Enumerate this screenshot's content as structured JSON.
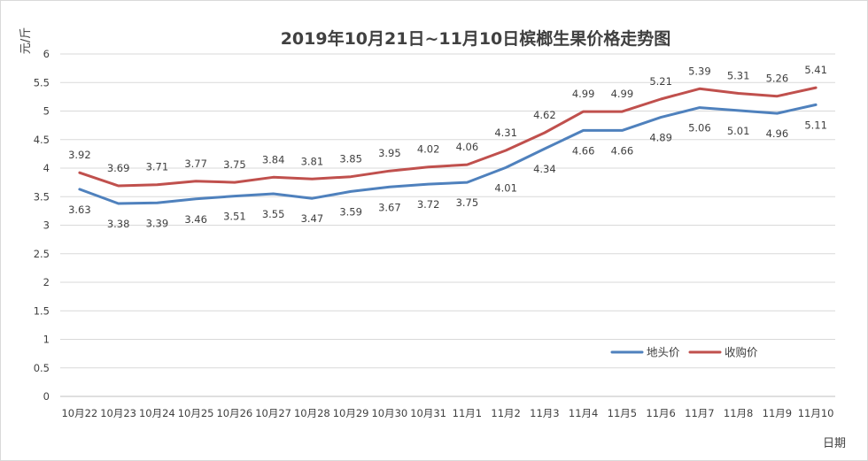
{
  "chart_data": {
    "type": "line",
    "title": "2019年10月21日~11月10日槟榔生果价格走势图",
    "ylabel": "元/斤",
    "xlabel": "日期",
    "ylim": [
      0,
      6
    ],
    "yticks": [
      "0",
      "0.5",
      "1",
      "1.5",
      "2",
      "2.5",
      "3",
      "3.5",
      "4",
      "4.5",
      "5",
      "5.5",
      "6"
    ],
    "categories": [
      "10月22",
      "10月23",
      "10月24",
      "10月25",
      "10月26",
      "10月27",
      "10月28",
      "10月29",
      "10月30",
      "10月31",
      "11月1",
      "11月2",
      "11月3",
      "11月4",
      "11月5",
      "11月6",
      "11月7",
      "11月8",
      "11月9",
      "11月10"
    ],
    "series": [
      {
        "name": "地头价",
        "color": "#4f81bd",
        "values": [
          3.63,
          3.38,
          3.39,
          3.46,
          3.51,
          3.55,
          3.47,
          3.59,
          3.67,
          3.72,
          3.75,
          4.01,
          4.34,
          4.66,
          4.66,
          4.89,
          5.06,
          5.01,
          4.96,
          5.11
        ],
        "labels": [
          "3.63",
          "3.38",
          "3.39",
          "3.46",
          "3.51",
          "3.55",
          "3.47",
          "3.59",
          "3.67",
          "3.72",
          "3.75",
          "4.01",
          "4.34",
          "4.66",
          "4.66",
          "4.89",
          "5.06",
          "5.01",
          "4.96",
          "5.11"
        ]
      },
      {
        "name": "收购价",
        "color": "#c0504d",
        "values": [
          3.92,
          3.69,
          3.71,
          3.77,
          3.75,
          3.84,
          3.81,
          3.85,
          3.95,
          4.02,
          4.06,
          4.31,
          4.62,
          4.99,
          4.99,
          5.21,
          5.39,
          5.31,
          5.26,
          5.41
        ],
        "labels": [
          "3.92",
          "3.69",
          "3.71",
          "3.77",
          "3.75",
          "3.84",
          "3.81",
          "3.85",
          "3.95",
          "4.02",
          "4.06",
          "4.31",
          "4.62",
          "4.99",
          "4.99",
          "5.21",
          "5.39",
          "5.31",
          "5.26",
          "5.41"
        ]
      }
    ],
    "grid": true,
    "legend": "lower-right"
  }
}
